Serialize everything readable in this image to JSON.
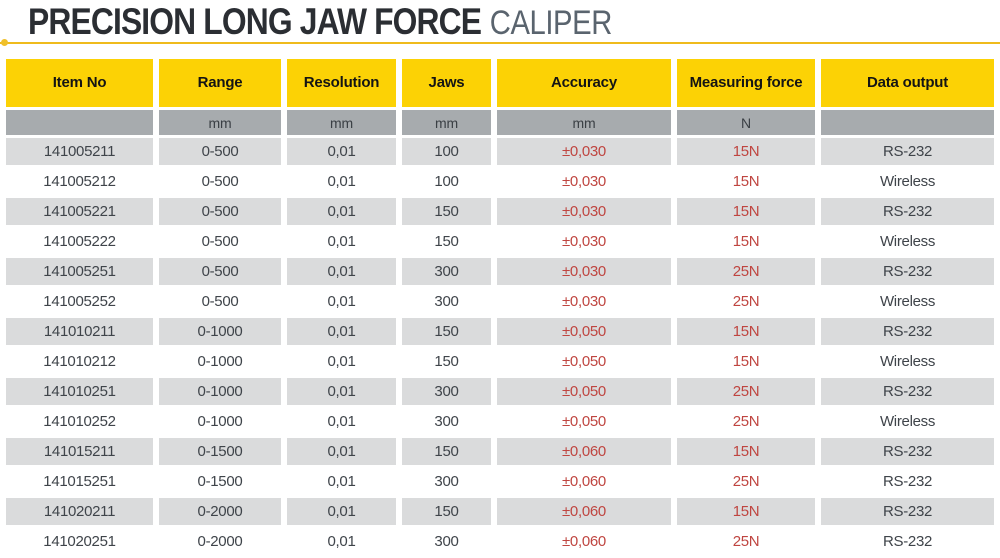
{
  "title": {
    "main": "PRECISION LONG JAW FORCE",
    "sub": "CALIPER"
  },
  "table": {
    "headers": [
      "Item No",
      "Range",
      "Resolution",
      "Jaws",
      "Accuracy",
      "Measuring force",
      "Data output"
    ],
    "units": [
      "",
      "mm",
      "mm",
      "mm",
      "mm",
      "N",
      ""
    ],
    "red_columns": [
      4,
      5
    ],
    "rows": [
      [
        "141005211",
        "0-500",
        "0,01",
        "100",
        "±0,030",
        "15N",
        "RS-232"
      ],
      [
        "141005212",
        "0-500",
        "0,01",
        "100",
        "±0,030",
        "15N",
        "Wireless"
      ],
      [
        "141005221",
        "0-500",
        "0,01",
        "150",
        "±0,030",
        "15N",
        "RS-232"
      ],
      [
        "141005222",
        "0-500",
        "0,01",
        "150",
        "±0,030",
        "15N",
        "Wireless"
      ],
      [
        "141005251",
        "0-500",
        "0,01",
        "300",
        "±0,030",
        "25N",
        "RS-232"
      ],
      [
        "141005252",
        "0-500",
        "0,01",
        "300",
        "±0,030",
        "25N",
        "Wireless"
      ],
      [
        "141010211",
        "0-1000",
        "0,01",
        "150",
        "±0,050",
        "15N",
        "RS-232"
      ],
      [
        "141010212",
        "0-1000",
        "0,01",
        "150",
        "±0,050",
        "15N",
        "Wireless"
      ],
      [
        "141010251",
        "0-1000",
        "0,01",
        "300",
        "±0,050",
        "25N",
        "RS-232"
      ],
      [
        "141010252",
        "0-1000",
        "0,01",
        "300",
        "±0,050",
        "25N",
        "Wireless"
      ],
      [
        "141015211",
        "0-1500",
        "0,01",
        "150",
        "±0,060",
        "15N",
        "RS-232"
      ],
      [
        "141015251",
        "0-1500",
        "0,01",
        "300",
        "±0,060",
        "25N",
        "RS-232"
      ],
      [
        "141020211",
        "0-2000",
        "0,01",
        "150",
        "±0,060",
        "15N",
        "RS-232"
      ],
      [
        "141020251",
        "0-2000",
        "0,01",
        "300",
        "±0,060",
        "25N",
        "RS-232"
      ]
    ]
  },
  "colors": {
    "header_yellow": "#FCD205",
    "units_gray": "#A7ABAE",
    "row_alt_gray": "#DADBDC",
    "accent_red": "#BF4540",
    "rule_gold": "#EFBB1C",
    "title_dark": "#2B2E33",
    "title_gray": "#5A646E"
  }
}
